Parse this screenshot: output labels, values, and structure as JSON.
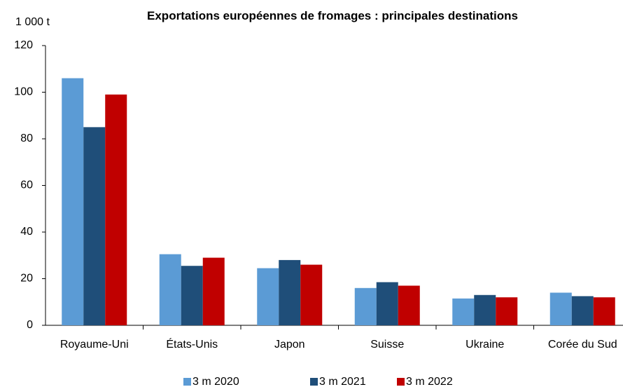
{
  "chart_data": {
    "type": "bar",
    "title": "Exportations européennes de fromages : principales destinations",
    "y_axis_label": "1 000 t",
    "categories": [
      "Royaume-Uni",
      "États-Unis",
      "Japon",
      "Suisse",
      "Ukraine",
      "Corée du Sud"
    ],
    "series": [
      {
        "name": "3 m 2020",
        "color": "#5b9bd5",
        "values": [
          106,
          30.5,
          24.5,
          16,
          11.5,
          14
        ]
      },
      {
        "name": "3 m 2021",
        "color": "#1f4e79",
        "values": [
          85,
          25.5,
          28,
          18.5,
          13,
          12.5
        ]
      },
      {
        "name": "3 m 2022",
        "color": "#c00000",
        "values": [
          99,
          29,
          26,
          17,
          12,
          12
        ]
      }
    ],
    "ylim": [
      0,
      120
    ],
    "yticks": [
      0,
      20,
      40,
      60,
      80,
      100,
      120
    ],
    "grid": false,
    "legend": "bottom"
  }
}
